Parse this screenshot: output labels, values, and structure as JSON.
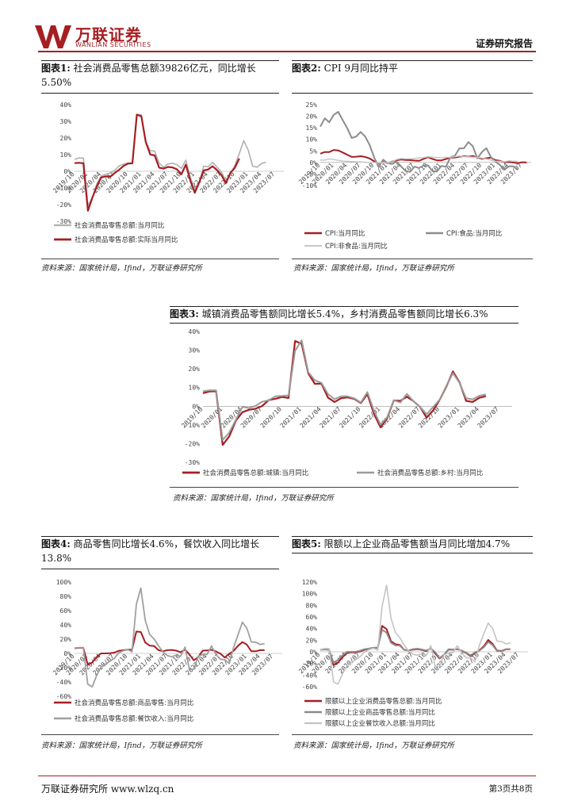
{
  "header": {
    "logo_cn": "万联证券",
    "logo_en": "WANLIAN SECURITIES",
    "report_type": "证券研究报告"
  },
  "colors": {
    "brand": "#a61e22",
    "series_gray": "#8c8c8c",
    "series_light": "#bdbdbd"
  },
  "figures": [
    {
      "label": "图表1:",
      "title": "社会消费品零售总额39826亿元，同比增长5.50%",
      "source": "资料来源：国家统计局，Ifind，万联证券研究所"
    },
    {
      "label": "图表2:",
      "title": "CPI 9月同比持平",
      "source": "资料来源：国家统计局，Ifind，万联证券研究所"
    },
    {
      "label": "图表3:",
      "title": "城镇消费品零售额同比增长5.4%，乡村消费品零售额同比增长6.3%",
      "source": "资料来源：国家统计局，Ifind，万联证券研究所"
    },
    {
      "label": "图表4:",
      "title": "商品零售同比增长4.6%，餐饮收入同比增长13.8%",
      "source": "资料来源：国家统计局，Ifind，万联证券研究所"
    },
    {
      "label": "图表5:",
      "title": "限额以上企业商品零售额当月同比增加4.7%",
      "source": "资料来源：国家统计局，Ifind，万联证券研究所"
    }
  ],
  "chart_data": [
    {
      "type": "line",
      "ylim": [
        -30,
        40
      ],
      "yticks": [
        "40%",
        "30%",
        "20%",
        "10%",
        "0%",
        "-10%",
        "-20%",
        "-30%"
      ],
      "yvals": [
        40,
        30,
        20,
        10,
        0,
        -10,
        -20,
        -30
      ],
      "xticks": [
        "2019/10",
        "2020/01",
        "2020/04",
        "2020/07",
        "2020/10",
        "2021/01",
        "2021/04",
        "2021/07",
        "2021/10",
        "2022/01",
        "2022/04",
        "2022/07",
        "2022/10",
        "2023/01",
        "2023/04",
        "2023/07"
      ],
      "series": [
        {
          "name": "社会消费品零售总额:当月同比",
          "color": "#b0b0b0",
          "width": 1.6,
          "values": [
            7.2,
            8,
            8,
            -20.5,
            -15.8,
            -7.5,
            -2.8,
            -1.8,
            -1.1,
            0.5,
            3.3,
            4.3,
            5,
            4.6,
            34.2,
            33.9,
            17.7,
            12.4,
            12.1,
            4.9,
            2.5,
            4.4,
            4.9,
            3.9,
            1.7,
            6.7,
            -3.5,
            -11.1,
            -6.7,
            3.1,
            2.7,
            5.4,
            2.5,
            -0.5,
            -5.9,
            -1.8,
            3.5,
            10.6,
            18.4,
            12.7,
            3.1,
            2.5,
            4.6,
            5.5
          ]
        },
        {
          "name": "社会消费品零售总额:实际当月同比",
          "color": "#a61e22",
          "width": 2.2,
          "values": [
            4.9,
            5.1,
            4.8,
            -23.7,
            -15.8,
            -9.1,
            -3.7,
            -3,
            -3.3,
            -1.1,
            0.9,
            3.2,
            4.6,
            4.8,
            34,
            33,
            17.5,
            10.1,
            9.5,
            2.2,
            1.6,
            2.6,
            2.3,
            1.2,
            -1.8,
            4,
            -5.5,
            -12.9,
            -6.7,
            0.5,
            1.1,
            3,
            0.7,
            -2.4,
            -7.1,
            -0.9,
            2.1,
            7.7
          ]
        }
      ]
    },
    {
      "type": "line",
      "ylim": [
        -10,
        25
      ],
      "yticks": [
        "25%",
        "20%",
        "15%",
        "10%",
        "5%",
        "0%",
        "-5%",
        "-10%"
      ],
      "yvals": [
        25,
        20,
        15,
        10,
        5,
        0,
        -5,
        -10
      ],
      "xticks": [
        "2019/10",
        "2020/01",
        "2020/04",
        "2020/07",
        "2020/10",
        "2021/01",
        "2021/04",
        "2021/07",
        "2021/10",
        "2022/01",
        "2022/04",
        "2022/07",
        "2022/10",
        "2023/01",
        "2023/04",
        "2023/07"
      ],
      "series": [
        {
          "name": "CPI:当月同比",
          "color": "#a61e22",
          "width": 2,
          "values": [
            3.8,
            4.5,
            4.5,
            5.4,
            5.2,
            4.3,
            3.3,
            2.4,
            2.5,
            2.7,
            2.4,
            1.7,
            0.5,
            -0.5,
            0.2,
            -0.3,
            0.4,
            0.9,
            1.3,
            1.1,
            1,
            0.8,
            0.7,
            1.5,
            2.3,
            1.5,
            0.9,
            0.9,
            1.5,
            2.1,
            2.1,
            2.5,
            2.7,
            2.5,
            2.8,
            2.1,
            1.6,
            1.8,
            2.1,
            1,
            0.7,
            0.1,
            0.2,
            0,
            -0.3,
            0.1,
            0
          ]
        },
        {
          "name": "CPI:食品:当月同比",
          "color": "#8c8c8c",
          "width": 2,
          "values": [
            15.5,
            19.1,
            17.4,
            20.6,
            21.9,
            18.3,
            14.8,
            10.6,
            11.2,
            13.2,
            11.2,
            7.5,
            2.2,
            -2,
            1.2,
            -0.2,
            -0.7,
            0.3,
            -1.7,
            -3.7,
            -4.1,
            -1.8,
            -2.4,
            -1.4,
            -1.2,
            -3.8,
            -3.9,
            -1.5,
            -1.9,
            2.3,
            2.9,
            6.1,
            6.1,
            8.8,
            7,
            1.8,
            4.4,
            6.2,
            2.4,
            0.4,
            -1,
            -3.2,
            -1.7,
            -1.7,
            -3.2
          ]
        },
        {
          "name": "CPI:非食品:当月同比",
          "color": "#c8c8c8",
          "width": 1.5,
          "values": [
            1,
            1,
            1.5,
            1.3,
            0.9,
            0.6,
            0.5,
            0.4,
            0.3,
            0.2,
            0.1,
            0,
            0,
            -0.3,
            0,
            0,
            0.3,
            1.3,
            1.7,
            1.6,
            1.6,
            1.7,
            1.9,
            2.1,
            2.5,
            2.3,
            2.1,
            2.1,
            2.2,
            2.3,
            2.5,
            2.8,
            2.5,
            2.4,
            2.3,
            2.2,
            1.9,
            1.5,
            1,
            0.5,
            0.5,
            0.3,
            0.7,
            0.5,
            0.5
          ]
        }
      ]
    },
    {
      "type": "line",
      "ylim": [
        -30,
        40
      ],
      "yticks": [
        "40%",
        "30%",
        "20%",
        "10%",
        "0%",
        "-10%",
        "-20%",
        "-30%"
      ],
      "yvals": [
        40,
        30,
        20,
        10,
        0,
        -10,
        -20,
        -30
      ],
      "xticks": [
        "2019/10",
        "2020/01",
        "2020/04",
        "2020/07",
        "2020/10",
        "2021/01",
        "2021/04",
        "2021/07",
        "2021/10",
        "2022/01",
        "2022/04",
        "2022/07",
        "2022/10",
        "2023/01",
        "2023/04",
        "2023/07"
      ],
      "series": [
        {
          "name": "社会消费品零售总额:城镇:当月同比",
          "color": "#a61e22",
          "width": 2.2,
          "values": [
            7,
            7.9,
            8,
            -20.7,
            -16.1,
            -7.7,
            -3.2,
            -1.9,
            -1.3,
            0.1,
            3.3,
            4,
            4.9,
            4.4,
            34.9,
            33.4,
            17.6,
            12,
            12.1,
            4.6,
            2.3,
            4.3,
            4.7,
            3.9,
            1.7,
            6.5,
            -4.1,
            -11.3,
            -6.5,
            3.1,
            2.9,
            5.1,
            2.7,
            -0.4,
            -6.1,
            -2.2,
            3.5,
            10.5,
            18.6,
            12.8,
            2.9,
            2.3,
            4.5,
            5.4
          ]
        },
        {
          "name": "社会消费品零售总额:乡村:当月同比",
          "color": "#9a9a9a",
          "width": 2,
          "values": [
            8,
            8.5,
            8.5,
            -18.1,
            -14.1,
            -7.2,
            -0.3,
            -1,
            0.2,
            2.4,
            3.2,
            5.3,
            5.5,
            5.8,
            29.7,
            35.3,
            18.2,
            13.9,
            12.5,
            6.5,
            3.8,
            5.3,
            5.3,
            4.2,
            2,
            7.6,
            -2.5,
            -9.9,
            -5.9,
            3.2,
            2,
            6.6,
            2.7,
            -0.4,
            -4.3,
            -0.4,
            3.6,
            10.9,
            17.7,
            12.5,
            4.3,
            3.7,
            5.6,
            6.3
          ]
        }
      ]
    },
    {
      "type": "line",
      "ylim": [
        -60,
        100
      ],
      "yticks": [
        "100%",
        "80%",
        "60%",
        "40%",
        "20%",
        "0%",
        "-20%",
        "-40%",
        "-60%"
      ],
      "yvals": [
        100,
        80,
        60,
        40,
        20,
        0,
        -20,
        -40,
        -60
      ],
      "xticks": [
        "2019/10",
        "2020/01",
        "2020/04",
        "2020/07",
        "2020/10",
        "2021/01",
        "2021/04",
        "2021/07",
        "2021/10",
        "2022/01",
        "2022/04",
        "2022/07",
        "2022/10",
        "2023/01",
        "2023/04",
        "2023/07"
      ],
      "series": [
        {
          "name": "社会消费品零售总额:商品零售:当月同比",
          "color": "#a61e22",
          "width": 2,
          "values": [
            7.2,
            7.8,
            7.9,
            -15.8,
            -12.8,
            -5.1,
            0,
            0,
            0.2,
            1.1,
            3.6,
            4.4,
            5.2,
            5.1,
            30.7,
            30,
            15.3,
            10.9,
            10.4,
            4.5,
            3,
            4.5,
            4.9,
            3.9,
            1.8,
            5.3,
            -1.4,
            -9.7,
            -5,
            3.9,
            4.1,
            5.1,
            2.8,
            -0.5,
            -5.7,
            -0.6,
            3.5,
            10.8,
            15.9,
            12.2,
            3,
            3,
            4.6,
            4.6
          ]
        },
        {
          "name": "社会消费品零售总额:餐饮收入:当月同比",
          "color": "#a0a0a0",
          "width": 1.8,
          "values": [
            7.6,
            8.2,
            8,
            -43.1,
            -46.8,
            -31,
            -18.9,
            -15.2,
            -11,
            -7,
            0.8,
            3.7,
            5.5,
            2.2,
            68.9,
            91.6,
            46.4,
            26.6,
            20.3,
            10.8,
            2.2,
            -3.1,
            -4.7,
            -2.4,
            -4.1,
            8.9,
            -22.7,
            -22.1,
            -4,
            -1.6,
            -1.5,
            10.5,
            -1.7,
            -8.1,
            -8.9,
            -14.1,
            8.4,
            26.3,
            43.8,
            35.1,
            16.1,
            15.8,
            12.4,
            13.8
          ]
        }
      ]
    },
    {
      "type": "line",
      "ylim": [
        -60,
        120
      ],
      "yticks": [
        "120%",
        "100%",
        "80%",
        "60%",
        "40%",
        "20%",
        "0%",
        "-20%",
        "-40%",
        "-60%"
      ],
      "yvals": [
        120,
        100,
        80,
        60,
        40,
        20,
        0,
        -20,
        -40,
        -60
      ],
      "xticks": [
        "2019/10",
        "2020/01",
        "2020/04",
        "2020/07",
        "2020/10",
        "2021/01",
        "2021/04",
        "2021/07",
        "2021/10",
        "2022/01",
        "2022/04",
        "2022/07",
        "2022/10",
        "2023/01",
        "2023/04",
        "2023/07"
      ],
      "series": [
        {
          "name": "限额以上企业消费品零售总额:当月同比",
          "color": "#a61e22",
          "width": 2,
          "values": [
            3.6,
            4.5,
            3.6,
            -23.1,
            -18.8,
            -9.2,
            -2.3,
            -0.9,
            -0.9,
            0.7,
            3.4,
            5.1,
            6.9,
            6.8,
            44.6,
            39.1,
            18.3,
            13.1,
            11.8,
            3.4,
            2.2,
            3.8,
            4.7,
            3.3,
            1.2,
            6.5,
            -2.9,
            -11.6,
            -5.1,
            4,
            3.5,
            4.7,
            2.1,
            -2.2,
            -7.3,
            -2.3,
            2.7,
            9.7,
            20.5,
            13.7,
            2,
            1.5,
            4.3,
            4.5
          ]
        },
        {
          "name": "限额以上企业商品零售总额:当月同比",
          "color": "#8c8c8c",
          "width": 2,
          "values": [
            3.5,
            4.1,
            3.4,
            -18.8,
            -14.1,
            -6.2,
            -0.1,
            0,
            0.1,
            1.9,
            4.5,
            5.6,
            7,
            7,
            37.9,
            33,
            15.6,
            11,
            10.8,
            3.4,
            2.5,
            4.7,
            5.4,
            3.9,
            2.3,
            5.6,
            -0.6,
            -10.7,
            -4.9,
            4.3,
            3.9,
            4.2,
            2.1,
            -1.3,
            -6.2,
            -0.8,
            2.1,
            8.1,
            17.1,
            11.5,
            1.3,
            0.9,
            4,
            4.7
          ]
        },
        {
          "name": "限额以上企业餐饮收入总额:当月同比",
          "color": "#c4c4c4",
          "width": 1.6,
          "values": [
            4,
            5.8,
            5.4,
            -51.8,
            -55.7,
            -38,
            -24.6,
            -18.4,
            -13.5,
            -8.5,
            -0.3,
            3.6,
            6.2,
            2.9,
            78.7,
            114.6,
            57.4,
            33.1,
            24.1,
            11.7,
            1.2,
            -4.3,
            -5.9,
            -3.3,
            -6.1,
            10.6,
            -25,
            -24.6,
            -5.2,
            -2.3,
            -1.6,
            10.5,
            -2.1,
            -10,
            -10.5,
            -17.3,
            11.5,
            31.2,
            49.3,
            40.1,
            18.3,
            17.6,
            13.6,
            15.5
          ]
        }
      ]
    }
  ],
  "footer": {
    "left": "万联证券研究所 www.wlzq.cn",
    "right": "第3页共8页"
  }
}
